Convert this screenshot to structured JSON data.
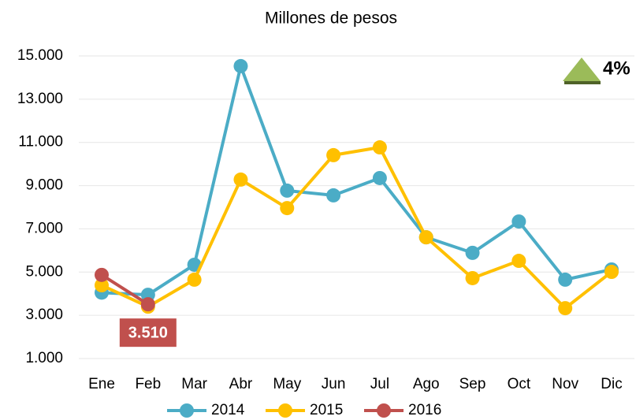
{
  "chart_data": {
    "type": "line",
    "title": "Millones de pesos",
    "categories": [
      "Ene",
      "Feb",
      "Mar",
      "Abr",
      "May",
      "Jun",
      "Jul",
      "Ago",
      "Sep",
      "Oct",
      "Nov",
      "Dic"
    ],
    "series": [
      {
        "name": "2014",
        "color": "#4bacc6",
        "values": [
          4050,
          3950,
          5340,
          14530,
          8770,
          8550,
          9350,
          6610,
          5890,
          7340,
          4650,
          5120
        ]
      },
      {
        "name": "2015",
        "color": "#ffc000",
        "values": [
          4390,
          3400,
          4650,
          9280,
          7960,
          10410,
          10770,
          6610,
          4720,
          5520,
          3330,
          5010
        ]
      },
      {
        "name": "2016",
        "color": "#c0504d",
        "values": [
          4870,
          3510,
          null,
          null,
          null,
          null,
          null,
          null,
          null,
          null,
          null,
          null
        ],
        "value_labels": [
          null,
          "3.510",
          null,
          null,
          null,
          null,
          null,
          null,
          null,
          null,
          null,
          null
        ]
      }
    ],
    "ylim": [
      1000,
      15000
    ],
    "yticks": [
      {
        "value": 1000,
        "label": "1.000"
      },
      {
        "value": 3000,
        "label": "3.000"
      },
      {
        "value": 5000,
        "label": "5.000"
      },
      {
        "value": 7000,
        "label": "7.000"
      },
      {
        "value": 9000,
        "label": "9.000"
      },
      {
        "value": 11000,
        "label": "11.000"
      },
      {
        "value": 13000,
        "label": "13.000"
      },
      {
        "value": 15000,
        "label": "15.000"
      }
    ],
    "grid": true,
    "legend": "bottom",
    "annotation": "4%"
  }
}
